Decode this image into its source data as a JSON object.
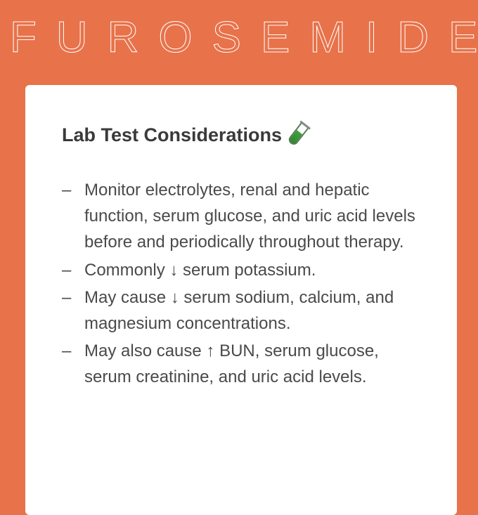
{
  "page": {
    "background_color": "#e8724a",
    "card_background": "#ffffff",
    "text_color": "#4a4a4a",
    "heading_color": "#3a3a3a"
  },
  "title": "FUROSEMIDE",
  "card": {
    "heading": "Lab Test Considerations",
    "heading_fontsize": 27,
    "body_fontsize": 24,
    "icon": "test-tube",
    "bullet_glyph": "–",
    "points": [
      "Monitor electrolytes, renal and hepatic function, serum glucose, and uric acid levels before and periodically throughout therapy.",
      "Commonly ↓ serum potassium.",
      "May cause ↓ serum sodium, calcium, and magnesium concentrations.",
      "May also cause ↑ BUN, serum glucose, serum creatinine, and uric acid levels."
    ]
  }
}
